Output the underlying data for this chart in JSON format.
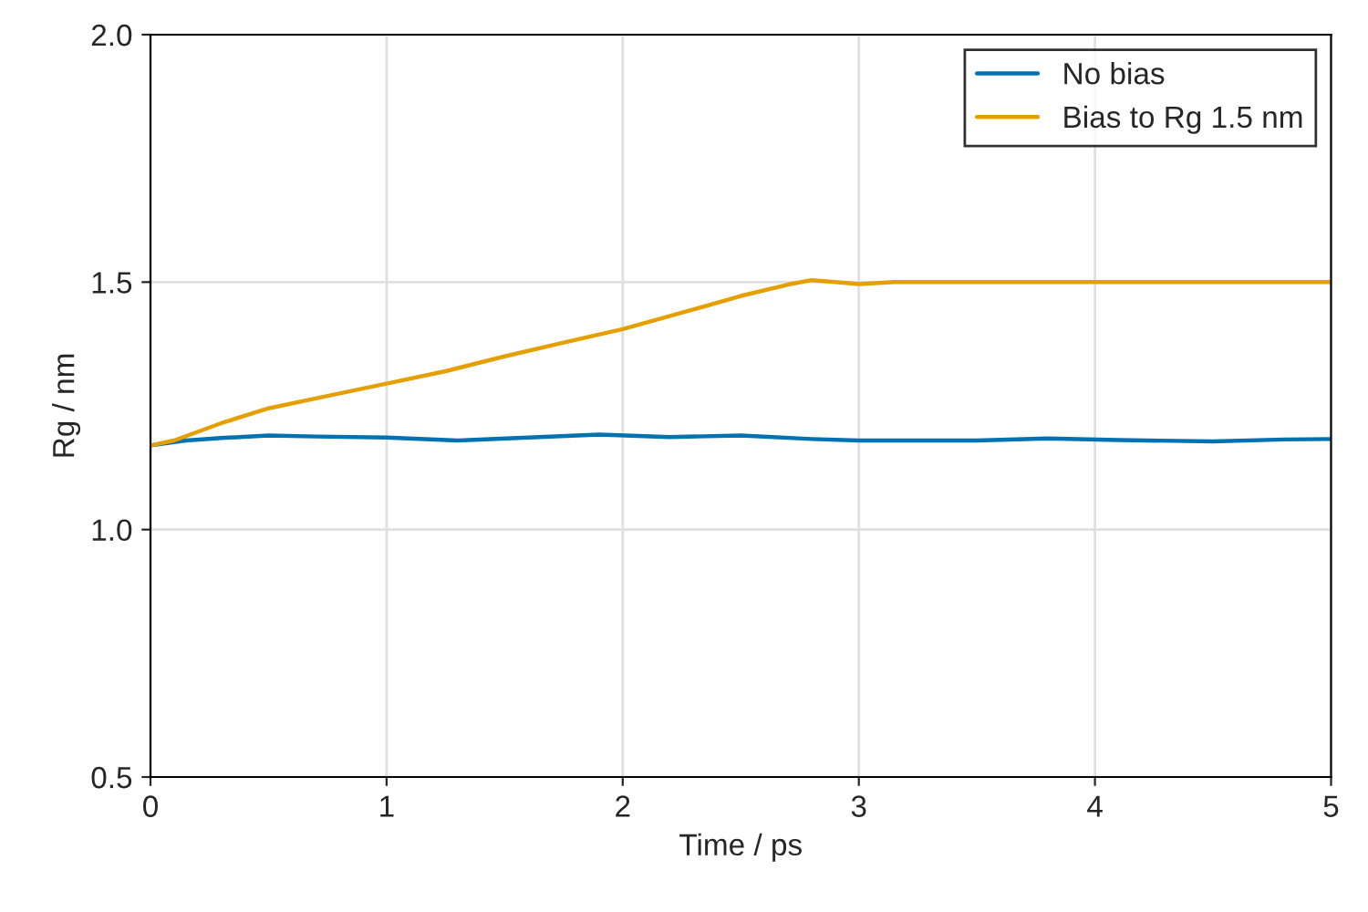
{
  "chart_data": {
    "type": "line",
    "xlabel": "Time / ps",
    "ylabel": "Rg / nm",
    "xlim": [
      0,
      5
    ],
    "ylim": [
      0.5,
      2.0
    ],
    "xticks": [
      0,
      1,
      2,
      3,
      4,
      5
    ],
    "yticks": [
      0.5,
      {
        "value": 1,
        "label": "1.0"
      },
      1.5,
      {
        "value": 2,
        "label": "2.0"
      }
    ],
    "grid": true,
    "legend": "top right",
    "line_style": "solid",
    "marker": "none",
    "series": [
      {
        "name": "No bias",
        "color": "#0072b2",
        "x": [
          0,
          0.15,
          0.3,
          0.5,
          0.7,
          1.0,
          1.3,
          1.6,
          1.9,
          2.2,
          2.5,
          2.8,
          3.0,
          3.3,
          3.5,
          3.8,
          4.1,
          4.5,
          4.8,
          5.0
        ],
        "values": [
          1.17,
          1.18,
          1.185,
          1.19,
          1.188,
          1.186,
          1.18,
          1.186,
          1.192,
          1.187,
          1.19,
          1.183,
          1.18,
          1.18,
          1.18,
          1.184,
          1.181,
          1.178,
          1.182,
          1.183
        ]
      },
      {
        "name": "Bias to Rg 1.5 nm",
        "color": "#e69f00",
        "x": [
          0,
          0.1,
          0.3,
          0.5,
          0.75,
          1.0,
          1.25,
          1.5,
          1.75,
          2.0,
          2.25,
          2.5,
          2.7,
          2.8,
          2.9,
          3.0,
          3.15,
          3.5,
          4.0,
          4.5,
          5.0
        ],
        "values": [
          1.17,
          1.18,
          1.215,
          1.245,
          1.27,
          1.295,
          1.32,
          1.35,
          1.378,
          1.405,
          1.438,
          1.472,
          1.495,
          1.504,
          1.5,
          1.496,
          1.5,
          1.5,
          1.5,
          1.5,
          1.5
        ]
      }
    ]
  }
}
